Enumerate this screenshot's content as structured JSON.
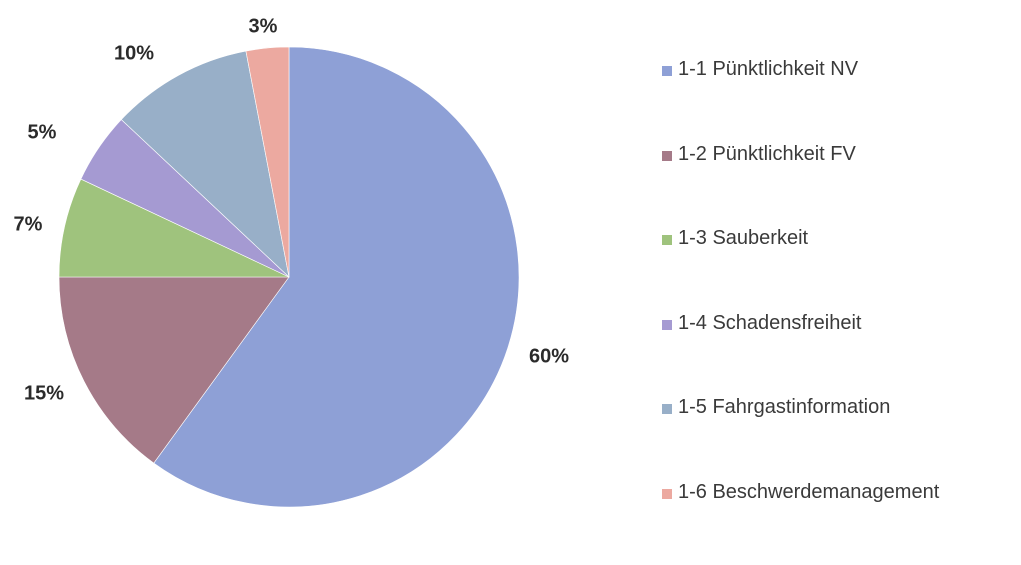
{
  "chart_data": {
    "type": "pie",
    "title": "",
    "legend_position": "right",
    "slices": [
      {
        "label": "1-1 Pünktlichkeit NV",
        "value": 60,
        "value_label": "60%",
        "color": "#8ea0d6"
      },
      {
        "label": "1-2 Pünktlichkeit FV",
        "value": 15,
        "value_label": "15%",
        "color": "#a57a88"
      },
      {
        "label": "1-3 Sauberkeit",
        "value": 7,
        "value_label": "7%",
        "color": "#9fc37d"
      },
      {
        "label": "1-4 Schadensfreiheit",
        "value": 5,
        "value_label": "5%",
        "color": "#a59ad2"
      },
      {
        "label": "1-5 Fahrgastinformation",
        "value": 10,
        "value_label": "10%",
        "color": "#98afc8"
      },
      {
        "label": "1-6 Beschwerdemanagement",
        "value": 3,
        "value_label": "3%",
        "color": "#eca9a0"
      }
    ]
  }
}
